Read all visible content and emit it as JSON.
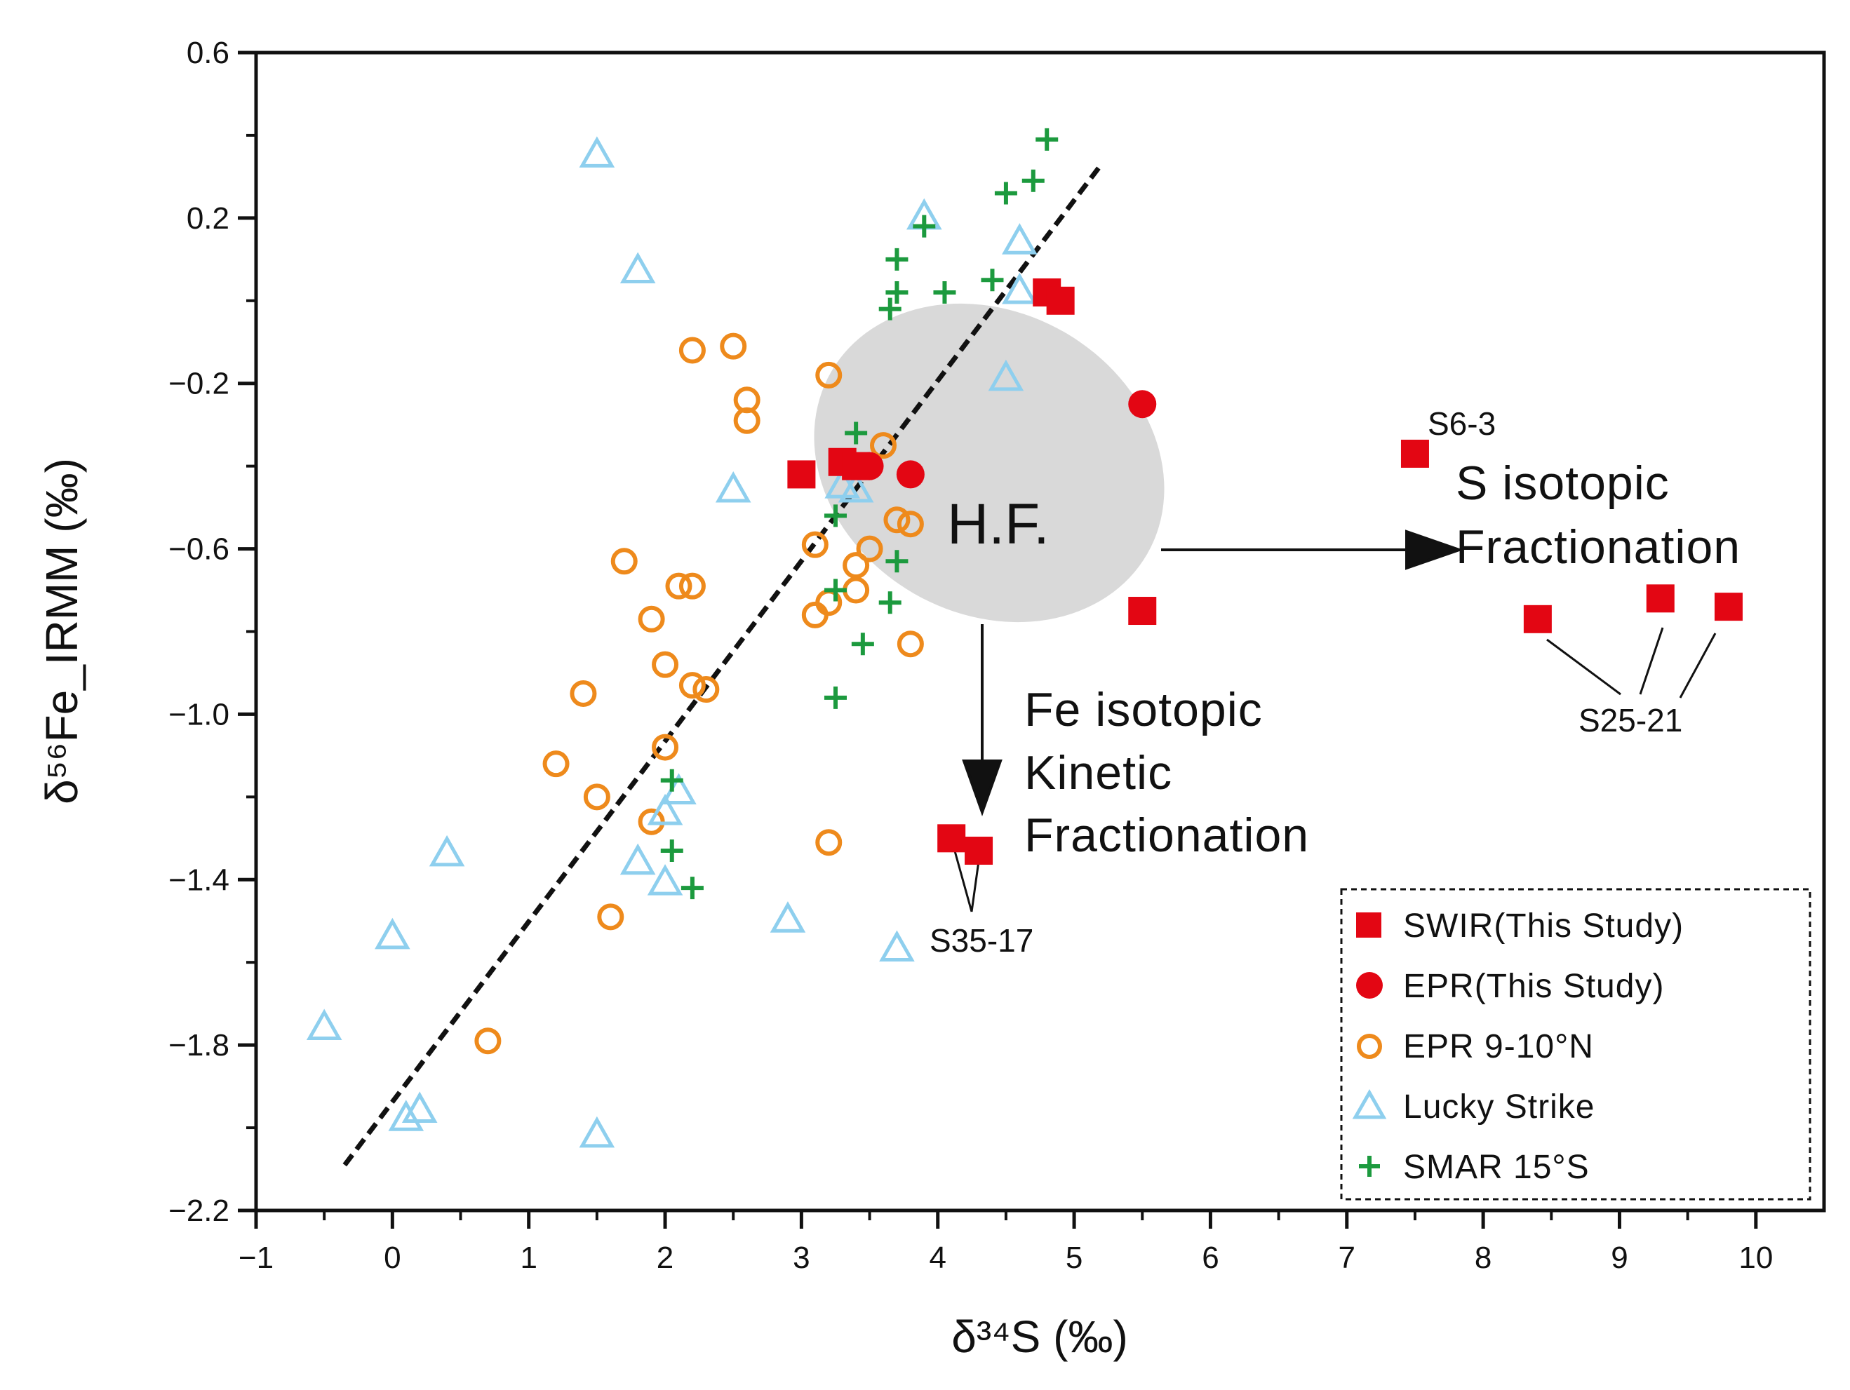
{
  "chart_data": {
    "type": "scatter",
    "xlabel": "δ³⁴S (‰)",
    "ylabel": "δ⁵⁶Fe_IRMM (‰)",
    "xlim": [
      -1,
      10.5
    ],
    "ylim": [
      -2.2,
      0.6
    ],
    "x_ticks": [
      "−1",
      "0",
      "1",
      "2",
      "3",
      "4",
      "5",
      "6",
      "7",
      "8",
      "9",
      "10"
    ],
    "y_ticks": [
      "0.6",
      "0.2",
      "−0.2",
      "−0.6",
      "−1.0",
      "−1.4",
      "−1.8",
      "−2.2"
    ],
    "trend_line": {
      "from": [
        -0.35,
        -2.09
      ],
      "to": [
        5.2,
        0.33
      ],
      "style": "dashed"
    },
    "legend": {
      "placement": "bottom-right",
      "entries": [
        "SWIR(This Study)",
        "EPR(This Study)",
        "EPR 9-10°N",
        "Lucky Strike",
        "SMAR 15°S"
      ]
    },
    "series": [
      {
        "name": "SWIR(This Study)",
        "marker": "square",
        "color": "#e30613",
        "points": [
          [
            3.0,
            -0.42
          ],
          [
            3.3,
            -0.39
          ],
          [
            3.4,
            -0.4
          ],
          [
            4.8,
            0.02
          ],
          [
            4.9,
            0.0
          ],
          [
            5.5,
            -0.75
          ],
          [
            7.5,
            -0.37
          ],
          [
            8.4,
            -0.77
          ],
          [
            9.3,
            -0.72
          ],
          [
            9.8,
            -0.74
          ],
          [
            4.1,
            -1.3
          ],
          [
            4.3,
            -1.33
          ]
        ]
      },
      {
        "name": "EPR(This Study)",
        "marker": "circle",
        "color": "#e30613",
        "points": [
          [
            3.5,
            -0.4
          ],
          [
            3.8,
            -0.42
          ],
          [
            5.5,
            -0.25
          ]
        ]
      },
      {
        "name": "EPR 9-10°N",
        "marker": "open-circle",
        "color": "#ee8a1c",
        "points": [
          [
            2.2,
            -0.12
          ],
          [
            2.5,
            -0.11
          ],
          [
            2.6,
            -0.24
          ],
          [
            2.6,
            -0.29
          ],
          [
            3.2,
            -0.18
          ],
          [
            3.6,
            -0.35
          ],
          [
            3.8,
            -0.54
          ],
          [
            3.7,
            -0.53
          ],
          [
            3.1,
            -0.59
          ],
          [
            3.5,
            -0.6
          ],
          [
            3.4,
            -0.64
          ],
          [
            1.7,
            -0.63
          ],
          [
            2.1,
            -0.69
          ],
          [
            2.2,
            -0.69
          ],
          [
            3.2,
            -0.73
          ],
          [
            3.1,
            -0.76
          ],
          [
            3.4,
            -0.7
          ],
          [
            1.9,
            -0.77
          ],
          [
            2.0,
            -0.88
          ],
          [
            2.2,
            -0.93
          ],
          [
            2.3,
            -0.94
          ],
          [
            1.4,
            -0.95
          ],
          [
            3.8,
            -0.83
          ],
          [
            2.0,
            -1.08
          ],
          [
            1.2,
            -1.12
          ],
          [
            1.5,
            -1.2
          ],
          [
            1.9,
            -1.26
          ],
          [
            3.2,
            -1.31
          ],
          [
            1.6,
            -1.49
          ],
          [
            0.7,
            -1.79
          ]
        ]
      },
      {
        "name": "Lucky Strike",
        "marker": "open-triangle",
        "color": "#8ecfee",
        "points": [
          [
            1.5,
            0.35
          ],
          [
            1.8,
            0.07
          ],
          [
            3.9,
            0.2
          ],
          [
            4.6,
            0.14
          ],
          [
            4.6,
            0.02
          ],
          [
            4.5,
            -0.19
          ],
          [
            2.5,
            -0.46
          ],
          [
            3.3,
            -0.45
          ],
          [
            3.4,
            -0.46
          ],
          [
            2.1,
            -1.19
          ],
          [
            2.0,
            -1.24
          ],
          [
            0.4,
            -1.34
          ],
          [
            1.8,
            -1.36
          ],
          [
            2.0,
            -1.41
          ],
          [
            2.9,
            -1.5
          ],
          [
            0.0,
            -1.54
          ],
          [
            3.7,
            -1.57
          ],
          [
            -0.5,
            -1.76
          ],
          [
            0.2,
            -1.96
          ],
          [
            0.1,
            -1.98
          ],
          [
            1.5,
            -2.02
          ]
        ]
      },
      {
        "name": "SMAR 15°S",
        "marker": "plus",
        "color": "#1c9a3e",
        "points": [
          [
            4.8,
            0.39
          ],
          [
            4.7,
            0.29
          ],
          [
            4.5,
            0.26
          ],
          [
            3.9,
            0.18
          ],
          [
            3.7,
            0.1
          ],
          [
            4.4,
            0.05
          ],
          [
            3.7,
            0.02
          ],
          [
            4.05,
            0.02
          ],
          [
            3.65,
            -0.02
          ],
          [
            3.4,
            -0.32
          ],
          [
            3.25,
            -0.52
          ],
          [
            3.7,
            -0.63
          ],
          [
            3.25,
            -0.7
          ],
          [
            3.65,
            -0.73
          ],
          [
            3.45,
            -0.83
          ],
          [
            3.25,
            -0.96
          ],
          [
            2.05,
            -1.16
          ],
          [
            2.05,
            -1.33
          ],
          [
            2.2,
            -1.42
          ]
        ]
      }
    ],
    "annotations": {
      "hf": "H.F.",
      "s_label_1": "S isotopic",
      "s_label_2": "Fractionation",
      "fe_label_1": "Fe isotopic",
      "fe_label_2": "Kinetic",
      "fe_label_3": "Fractionation",
      "sample_s6": "S6-3",
      "sample_s25": "S25-21",
      "sample_s35": "S35-17"
    },
    "colors": {
      "swir": "#e30613",
      "epr9": "#ee8a1c",
      "lucky": "#8ecfee",
      "smar": "#1c9a3e",
      "ellipse": "#d9d9d9"
    }
  }
}
